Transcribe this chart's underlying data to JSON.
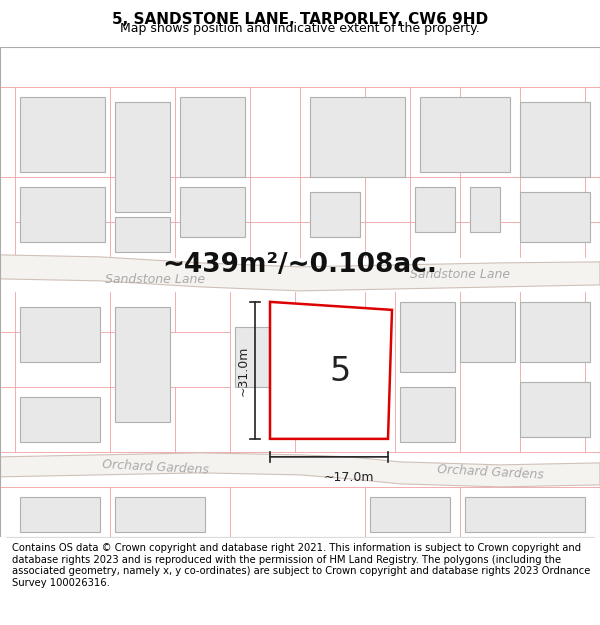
{
  "title": "5, SANDSTONE LANE, TARPORLEY, CW6 9HD",
  "subtitle": "Map shows position and indicative extent of the property.",
  "footer": "Contains OS data © Crown copyright and database right 2021. This information is subject to Crown copyright and database rights 2023 and is reproduced with the permission of HM Land Registry. The polygons (including the associated geometry, namely x, y co-ordinates) are subject to Crown copyright and database rights 2023 Ordnance Survey 100026316.",
  "map_bg": "#ffffff",
  "road_fill": "#f0eeec",
  "road_edge": "#c8b8b0",
  "road_label_color": "#aaaaaa",
  "plot_outline_color": "#dd0000",
  "plot_fill_color": "#ffffff",
  "building_fill": "#e8e8e8",
  "building_edge": "#bbbbbb",
  "lot_line_color": "#ffaaaa",
  "dim_color": "#222222",
  "area_text": "~439m²/~0.108ac.",
  "area_text_color": "#111111",
  "plot_number": "5",
  "dim_height": "~31.0m",
  "dim_width": "~17.0m",
  "road1_label": "Sandstone Lane",
  "road2_label": "Orchard Gardens",
  "title_fontsize": 11,
  "subtitle_fontsize": 9,
  "footer_fontsize": 7.2
}
